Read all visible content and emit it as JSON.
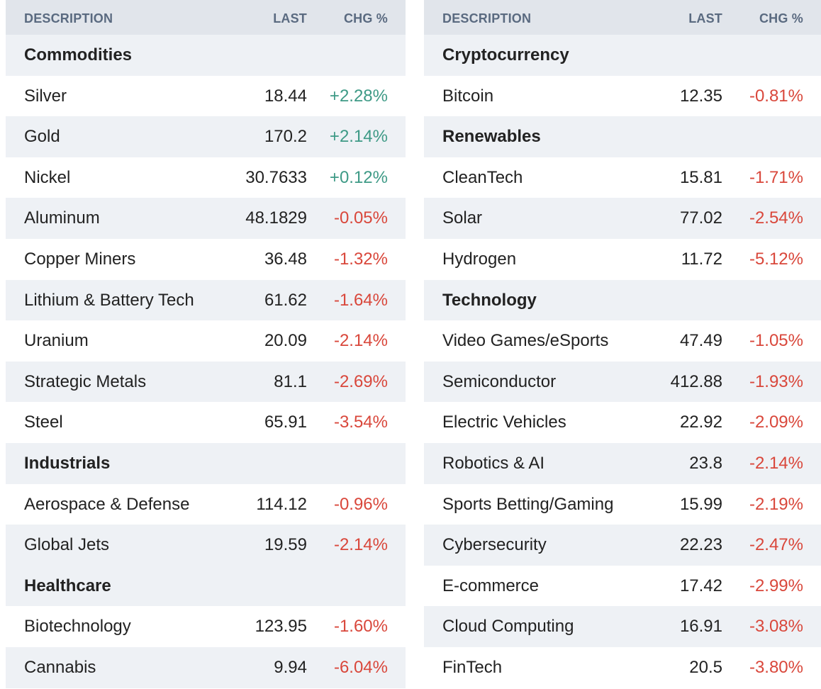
{
  "colors": {
    "positive": "#3e9a86",
    "negative": "#d9473b",
    "header_bg": "#e1e5eb",
    "alt_row_bg": "#eef1f5"
  },
  "headers": {
    "description": "DESCRIPTION",
    "last": "LAST",
    "change": "CHG %"
  },
  "left_panel": {
    "rows": [
      {
        "type": "section",
        "name": "Commodities"
      },
      {
        "type": "item",
        "name": "Silver",
        "last": "18.44",
        "change": "+2.28%",
        "direction": "up"
      },
      {
        "type": "item",
        "name": "Gold",
        "last": "170.2",
        "change": "+2.14%",
        "direction": "up"
      },
      {
        "type": "item",
        "name": "Nickel",
        "last": "30.7633",
        "change": "+0.12%",
        "direction": "up"
      },
      {
        "type": "item",
        "name": "Aluminum",
        "last": "48.1829",
        "change": "-0.05%",
        "direction": "down"
      },
      {
        "type": "item",
        "name": "Copper Miners",
        "last": "36.48",
        "change": "-1.32%",
        "direction": "down"
      },
      {
        "type": "item",
        "name": "Lithium & Battery Tech",
        "last": "61.62",
        "change": "-1.64%",
        "direction": "down"
      },
      {
        "type": "item",
        "name": "Uranium",
        "last": "20.09",
        "change": "-2.14%",
        "direction": "down"
      },
      {
        "type": "item",
        "name": "Strategic Metals",
        "last": "81.1",
        "change": "-2.69%",
        "direction": "down"
      },
      {
        "type": "item",
        "name": "Steel",
        "last": "65.91",
        "change": "-3.54%",
        "direction": "down"
      },
      {
        "type": "section",
        "name": "Industrials"
      },
      {
        "type": "item",
        "name": "Aerospace & Defense",
        "last": "114.12",
        "change": "-0.96%",
        "direction": "down"
      },
      {
        "type": "item",
        "name": "Global Jets",
        "last": "19.59",
        "change": "-2.14%",
        "direction": "down"
      },
      {
        "type": "section",
        "name": "Healthcare"
      },
      {
        "type": "item",
        "name": "Biotechnology",
        "last": "123.95",
        "change": "-1.60%",
        "direction": "down"
      },
      {
        "type": "item",
        "name": "Cannabis",
        "last": "9.94",
        "change": "-6.04%",
        "direction": "down"
      }
    ]
  },
  "right_panel": {
    "rows": [
      {
        "type": "section",
        "name": "Cryptocurrency"
      },
      {
        "type": "item",
        "name": "Bitcoin",
        "last": "12.35",
        "change": "-0.81%",
        "direction": "down"
      },
      {
        "type": "section",
        "name": "Renewables"
      },
      {
        "type": "item",
        "name": "CleanTech",
        "last": "15.81",
        "change": "-1.71%",
        "direction": "down"
      },
      {
        "type": "item",
        "name": "Solar",
        "last": "77.02",
        "change": "-2.54%",
        "direction": "down"
      },
      {
        "type": "item",
        "name": "Hydrogen",
        "last": "11.72",
        "change": "-5.12%",
        "direction": "down"
      },
      {
        "type": "section",
        "name": "Technology"
      },
      {
        "type": "item",
        "name": "Video Games/eSports",
        "last": "47.49",
        "change": "-1.05%",
        "direction": "down"
      },
      {
        "type": "item",
        "name": "Semiconductor",
        "last": "412.88",
        "change": "-1.93%",
        "direction": "down"
      },
      {
        "type": "item",
        "name": "Electric Vehicles",
        "last": "22.92",
        "change": "-2.09%",
        "direction": "down"
      },
      {
        "type": "item",
        "name": "Robotics & AI",
        "last": "23.8",
        "change": "-2.14%",
        "direction": "down"
      },
      {
        "type": "item",
        "name": "Sports Betting/Gaming",
        "last": "15.99",
        "change": "-2.19%",
        "direction": "down"
      },
      {
        "type": "item",
        "name": "Cybersecurity",
        "last": "22.23",
        "change": "-2.47%",
        "direction": "down"
      },
      {
        "type": "item",
        "name": "E-commerce",
        "last": "17.42",
        "change": "-2.99%",
        "direction": "down"
      },
      {
        "type": "item",
        "name": "Cloud Computing",
        "last": "16.91",
        "change": "-3.08%",
        "direction": "down"
      },
      {
        "type": "item",
        "name": "FinTech",
        "last": "20.5",
        "change": "-3.80%",
        "direction": "down"
      }
    ]
  }
}
